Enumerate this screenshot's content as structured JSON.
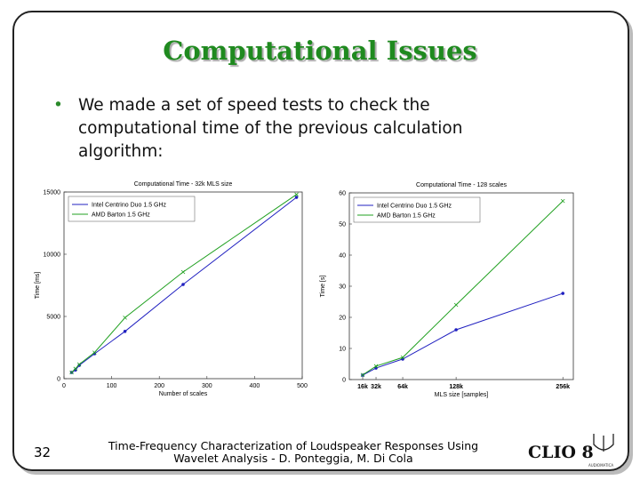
{
  "slide": {
    "title": "Computational Issues",
    "bullet": "We made a set of speed tests to check the computational time of the previous calculation algorithm:",
    "page_number": "32",
    "footer": [
      "Time-Frequency Characterization of Loudspeaker Responses Using",
      "Wavelet Analysis - D. Ponteggia, M. Di Cola"
    ],
    "logo": "CLIO 8",
    "logo_small": "AUDIOMATICA"
  },
  "chart_data": [
    {
      "type": "line",
      "title": "Computational Time - 32k MLS size",
      "x_label": "Number of scales",
      "y_label": "Time [ms]",
      "x": [
        16,
        24,
        32,
        64,
        128,
        250,
        488
      ],
      "series": [
        {
          "name": "Intel Centrino Duo 1.5 GHz",
          "color": "#2020c0",
          "marker": "dot",
          "values": [
            500,
            700,
            1070,
            2000,
            3800,
            7570,
            14570
          ]
        },
        {
          "name": "AMD Barton 1.5 GHz",
          "color": "#20a020",
          "marker": "x",
          "values": [
            500,
            800,
            1150,
            2100,
            4900,
            8570,
            14800
          ]
        }
      ],
      "xlim": [
        0,
        500
      ],
      "xticks": [
        0,
        100,
        200,
        300,
        400,
        500
      ],
      "ylim": [
        0,
        15000
      ],
      "yticks": [
        0,
        5000,
        10000,
        15000
      ],
      "legend": "upper left"
    },
    {
      "type": "line",
      "title": "Computational Time - 128 scales",
      "x_label": "MLS size [samples]",
      "y_label": "Time [s]",
      "x": [
        16384,
        32768,
        65536,
        131072,
        262144
      ],
      "series": [
        {
          "name": "Intel Centrino Duo 1.5 GHz",
          "color": "#2020c0",
          "marker": "dot",
          "values": [
            1.4,
            3.7,
            6.6,
            16,
            27.7
          ]
        },
        {
          "name": "AMD Barton 1.5 GHz",
          "color": "#20a020",
          "marker": "x",
          "values": [
            1.5,
            4.3,
            7.1,
            24,
            57.4
          ]
        }
      ],
      "xlim": [
        0,
        275000
      ],
      "xticks": [
        {
          "value": 16384,
          "label": "16k"
        },
        {
          "value": 32768,
          "label": "32k"
        },
        {
          "value": 65536,
          "label": "64k"
        },
        {
          "value": 131072,
          "label": "128k"
        },
        {
          "value": 262144,
          "label": "256k"
        }
      ],
      "ylim": [
        0,
        60
      ],
      "yticks": [
        0,
        10,
        20,
        30,
        40,
        50,
        60
      ],
      "legend": "upper left"
    }
  ]
}
